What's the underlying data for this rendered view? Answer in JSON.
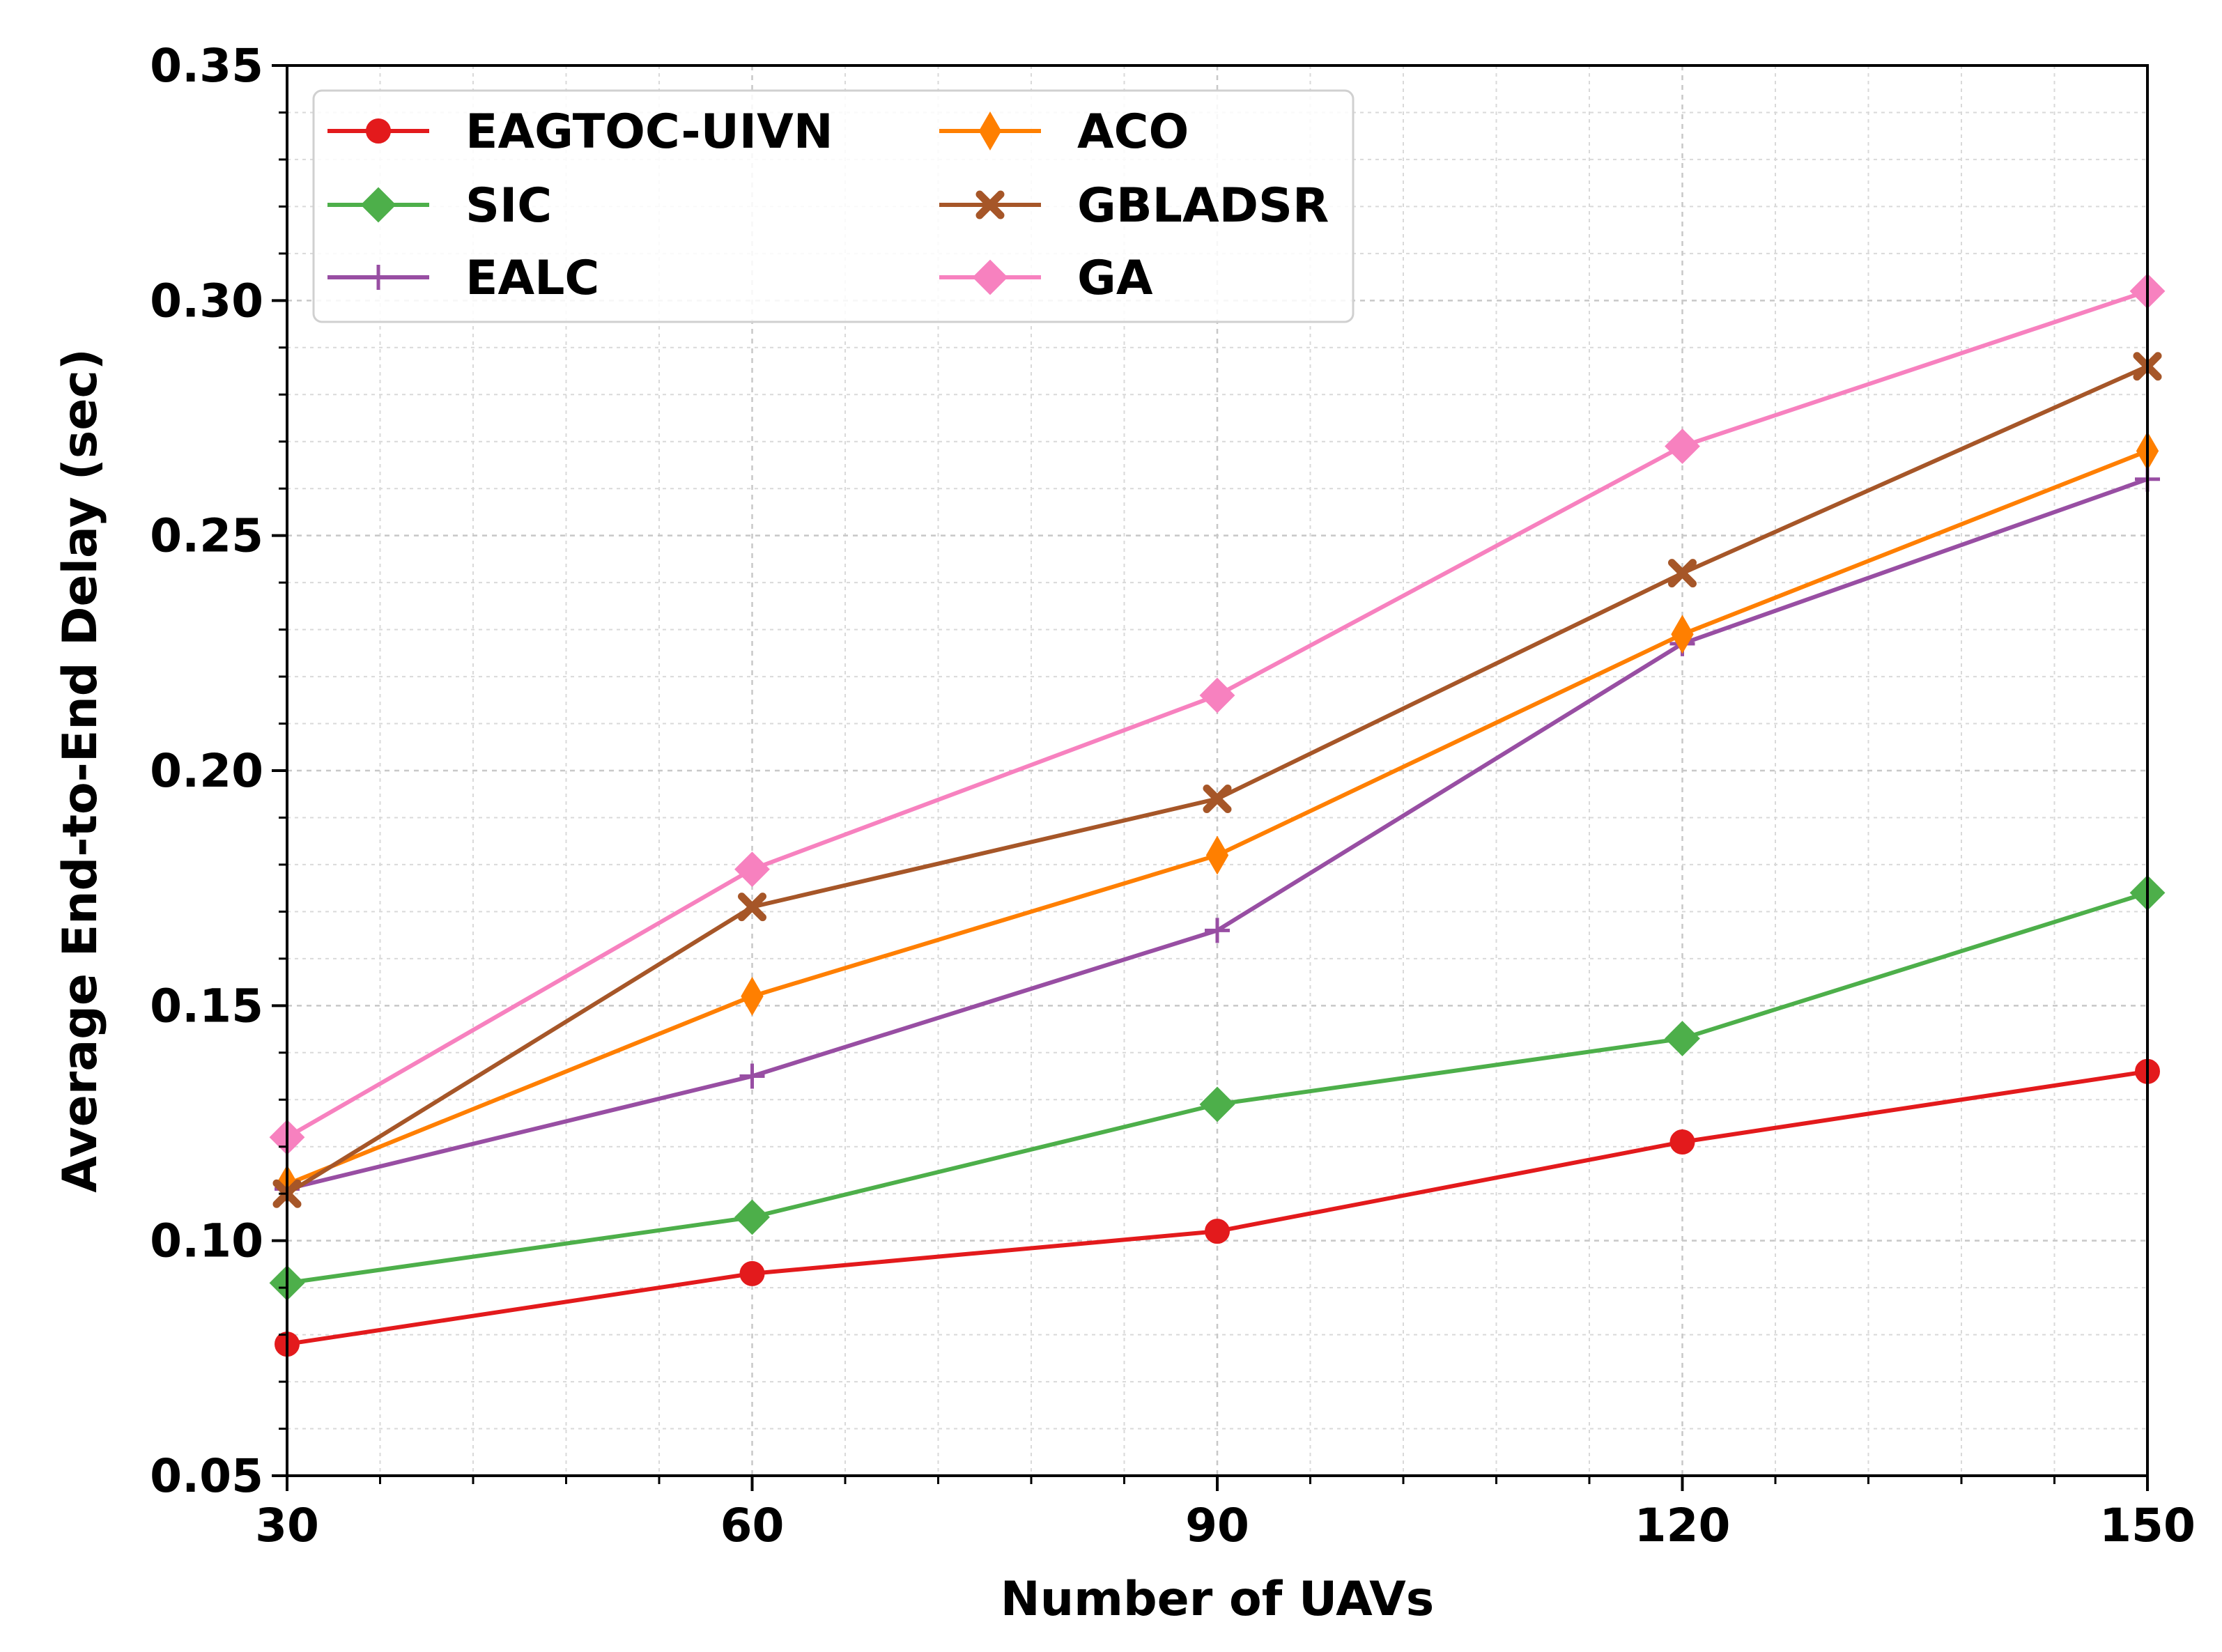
{
  "chart_data": {
    "type": "line",
    "title": "",
    "xlabel": "Number of UAVs",
    "ylabel": "Average End-to-End Delay (sec)",
    "x": [
      30,
      60,
      90,
      120,
      150
    ],
    "xlim": [
      30,
      150
    ],
    "ylim": [
      0.05,
      0.35
    ],
    "xticks": [
      "30",
      "60",
      "90",
      "120",
      "150"
    ],
    "yticks": [
      "0.05",
      "0.10",
      "0.15",
      "0.20",
      "0.25",
      "0.30",
      "0.35"
    ],
    "grid": true,
    "minor_grid": true,
    "legend_position": "top-left",
    "series": [
      {
        "name": "EAGTOC-UIVN",
        "color": "#e31a1c",
        "marker": "circle",
        "values": [
          0.078,
          0.093,
          0.102,
          0.121,
          0.136
        ]
      },
      {
        "name": "SIC",
        "color": "#4daf4a",
        "marker": "diamond",
        "values": [
          0.091,
          0.105,
          0.129,
          0.143,
          0.174
        ]
      },
      {
        "name": "EALC",
        "color": "#984ea3",
        "marker": "plus",
        "values": [
          0.111,
          0.135,
          0.166,
          0.227,
          0.262
        ]
      },
      {
        "name": "ACO",
        "color": "#ff7f00",
        "marker": "thin-diamond",
        "values": [
          0.112,
          0.152,
          0.182,
          0.229,
          0.268
        ]
      },
      {
        "name": "GBLADSR",
        "color": "#a65628",
        "marker": "x",
        "values": [
          0.11,
          0.171,
          0.194,
          0.242,
          0.286
        ]
      },
      {
        "name": "GA",
        "color": "#f781bf",
        "marker": "diamond",
        "values": [
          0.122,
          0.179,
          0.216,
          0.269,
          0.302
        ]
      }
    ]
  }
}
